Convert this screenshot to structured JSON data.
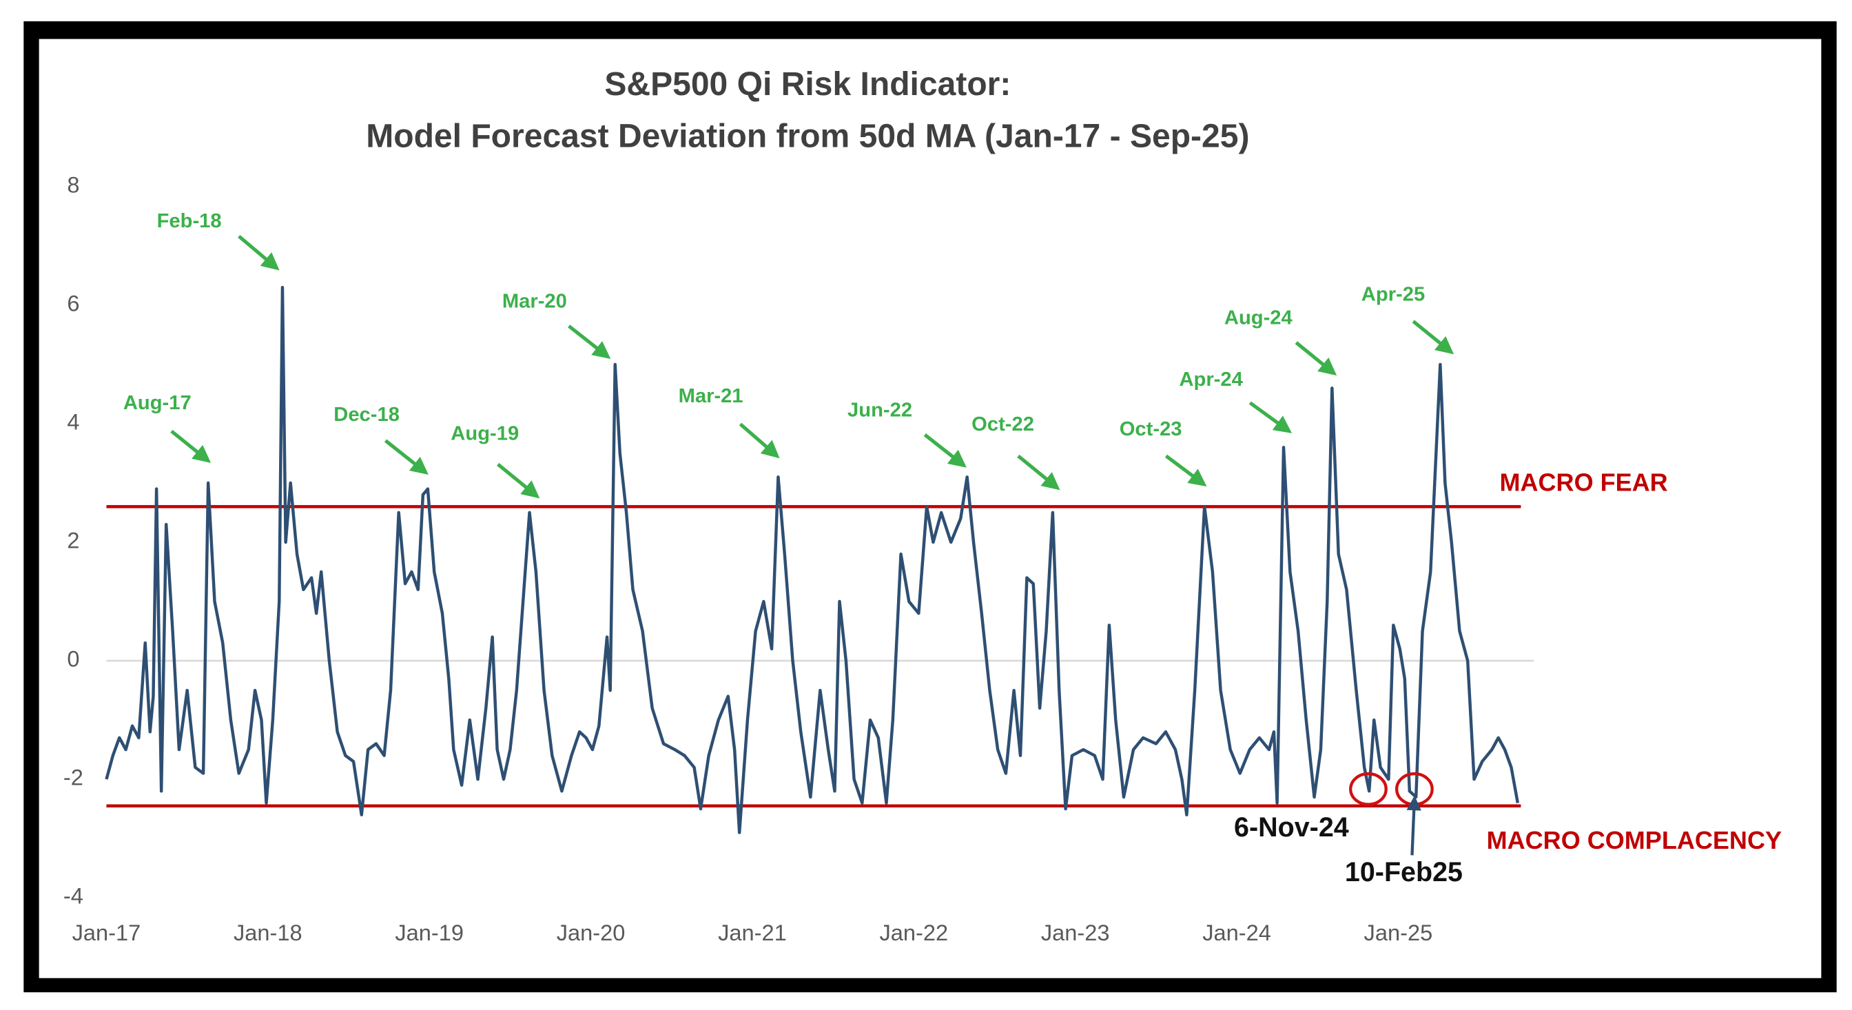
{
  "chart_data": {
    "type": "line",
    "title": "S&P500 Qi Risk Indicator:",
    "subtitle": "Model Forecast Deviation from 50d MA (Jan-17 - Sep-25)",
    "color": "#2e4f73",
    "xlim": [
      2017,
      2025.84
    ],
    "xticks": [
      {
        "value": 2017,
        "label": "Jan-17"
      },
      {
        "value": 2018,
        "label": "Jan-18"
      },
      {
        "value": 2019,
        "label": "Jan-19"
      },
      {
        "value": 2020,
        "label": "Jan-20"
      },
      {
        "value": 2021,
        "label": "Jan-21"
      },
      {
        "value": 2022,
        "label": "Jan-22"
      },
      {
        "value": 2023,
        "label": "Jan-23"
      },
      {
        "value": 2024,
        "label": "Jan-24"
      },
      {
        "value": 2025,
        "label": "Jan-25"
      }
    ],
    "ylim": [
      -4,
      8
    ],
    "yticks": [
      8,
      6,
      4,
      2,
      0,
      -2,
      -4
    ],
    "grid": false,
    "x": [
      2017.0,
      2017.04,
      2017.08,
      2017.12,
      2017.16,
      2017.2,
      2017.24,
      2017.27,
      2017.29,
      2017.31,
      2017.34,
      2017.37,
      2017.41,
      2017.45,
      2017.5,
      2017.55,
      2017.6,
      2017.63,
      2017.67,
      2017.72,
      2017.77,
      2017.82,
      2017.88,
      2017.92,
      2017.96,
      2017.99,
      2018.03,
      2018.07,
      2018.09,
      2018.11,
      2018.14,
      2018.18,
      2018.22,
      2018.27,
      2018.3,
      2018.33,
      2018.38,
      2018.43,
      2018.48,
      2018.53,
      2018.58,
      2018.62,
      2018.67,
      2018.72,
      2018.76,
      2018.81,
      2018.85,
      2018.89,
      2018.93,
      2018.96,
      2018.99,
      2019.03,
      2019.08,
      2019.12,
      2019.15,
      2019.2,
      2019.25,
      2019.3,
      2019.35,
      2019.39,
      2019.42,
      2019.46,
      2019.5,
      2019.54,
      2019.58,
      2019.62,
      2019.66,
      2019.71,
      2019.76,
      2019.82,
      2019.88,
      2019.93,
      2019.97,
      2020.01,
      2020.05,
      2020.1,
      2020.12,
      2020.15,
      2020.18,
      2020.22,
      2020.26,
      2020.32,
      2020.38,
      2020.45,
      2020.52,
      2020.58,
      2020.64,
      2020.68,
      2020.73,
      2020.79,
      2020.85,
      2020.89,
      2020.92,
      2020.97,
      2021.02,
      2021.07,
      2021.12,
      2021.16,
      2021.2,
      2021.25,
      2021.3,
      2021.36,
      2021.42,
      2021.47,
      2021.51,
      2021.54,
      2021.58,
      2021.63,
      2021.68,
      2021.73,
      2021.78,
      2021.83,
      2021.87,
      2021.92,
      2021.97,
      2022.03,
      2022.08,
      2022.12,
      2022.17,
      2022.23,
      2022.29,
      2022.33,
      2022.37,
      2022.42,
      2022.47,
      2022.52,
      2022.57,
      2022.62,
      2022.66,
      2022.7,
      2022.74,
      2022.78,
      2022.82,
      2022.86,
      2022.9,
      2022.94,
      2022.98,
      2023.05,
      2023.12,
      2023.17,
      2023.21,
      2023.25,
      2023.3,
      2023.36,
      2023.42,
      2023.5,
      2023.56,
      2023.62,
      2023.66,
      2023.69,
      2023.74,
      2023.8,
      2023.85,
      2023.9,
      2023.96,
      2024.02,
      2024.08,
      2024.14,
      2024.2,
      2024.23,
      2024.25,
      2024.29,
      2024.33,
      2024.38,
      2024.43,
      2024.48,
      2024.52,
      2024.56,
      2024.59,
      2024.63,
      2024.68,
      2024.74,
      2024.79,
      2024.82,
      2024.85,
      2024.89,
      2024.94,
      2024.97,
      2025.01,
      2025.04,
      2025.07,
      2025.11,
      2025.15,
      2025.2,
      2025.26,
      2025.29,
      2025.33,
      2025.38,
      2025.43,
      2025.47,
      2025.52,
      2025.58,
      2025.62,
      2025.66,
      2025.7,
      2025.74
    ],
    "values": [
      -2.0,
      -1.6,
      -1.3,
      -1.5,
      -1.1,
      -1.3,
      0.3,
      -1.2,
      -0.6,
      2.9,
      -2.2,
      2.3,
      0.5,
      -1.5,
      -0.5,
      -1.8,
      -1.9,
      3.0,
      1.0,
      0.3,
      -1.0,
      -1.9,
      -1.5,
      -0.5,
      -1.0,
      -2.4,
      -1.0,
      1.0,
      6.3,
      2.0,
      3.0,
      1.8,
      1.2,
      1.4,
      0.8,
      1.5,
      0.0,
      -1.2,
      -1.6,
      -1.7,
      -2.6,
      -1.5,
      -1.4,
      -1.6,
      -0.5,
      2.5,
      1.3,
      1.5,
      1.2,
      2.8,
      2.9,
      1.5,
      0.8,
      -0.3,
      -1.5,
      -2.1,
      -1.0,
      -2.0,
      -0.8,
      0.4,
      -1.5,
      -2.0,
      -1.5,
      -0.5,
      1.0,
      2.5,
      1.5,
      -0.5,
      -1.6,
      -2.2,
      -1.6,
      -1.2,
      -1.3,
      -1.5,
      -1.1,
      0.4,
      -0.5,
      5.0,
      3.5,
      2.5,
      1.2,
      0.5,
      -0.8,
      -1.4,
      -1.5,
      -1.6,
      -1.8,
      -2.5,
      -1.6,
      -1.0,
      -0.6,
      -1.5,
      -2.9,
      -1.0,
      0.5,
      1.0,
      0.2,
      3.1,
      1.8,
      0.0,
      -1.2,
      -2.3,
      -0.5,
      -1.5,
      -2.2,
      1.0,
      0.0,
      -2.0,
      -2.4,
      -1.0,
      -1.3,
      -2.4,
      -1.0,
      1.8,
      1.0,
      0.8,
      2.6,
      2.0,
      2.5,
      2.0,
      2.4,
      3.1,
      2.0,
      0.8,
      -0.5,
      -1.5,
      -1.9,
      -0.5,
      -1.6,
      1.4,
      1.3,
      -0.8,
      0.5,
      2.5,
      -0.5,
      -2.5,
      -1.6,
      -1.5,
      -1.6,
      -2.0,
      0.6,
      -1.0,
      -2.3,
      -1.5,
      -1.3,
      -1.4,
      -1.2,
      -1.5,
      -2.0,
      -2.6,
      -0.5,
      2.6,
      1.5,
      -0.5,
      -1.5,
      -1.9,
      -1.5,
      -1.3,
      -1.5,
      -1.2,
      -2.4,
      3.6,
      1.5,
      0.5,
      -1.0,
      -2.3,
      -1.5,
      1.0,
      4.6,
      1.8,
      1.2,
      -0.5,
      -1.8,
      -2.2,
      -1.0,
      -1.8,
      -2.0,
      0.6,
      0.2,
      -0.3,
      -2.2,
      -2.3,
      0.5,
      1.5,
      5.0,
      3.0,
      2.0,
      0.5,
      0.0,
      -2.0,
      -1.7,
      -1.5,
      -1.3,
      -1.5,
      -1.8,
      -2.4
    ],
    "reference_lines": [
      {
        "value": 2.6,
        "label": "MACRO FEAR",
        "color": "#c00000"
      },
      {
        "value": -2.45,
        "label": "MACRO COMPLACENCY",
        "color": "#c00000"
      }
    ],
    "annotation_color": "#3cb04b",
    "annotations": [
      "Aug-17",
      "Feb-18",
      "Dec-18",
      "Aug-19",
      "Mar-20",
      "Mar-21",
      "Jun-22",
      "Oct-22",
      "Oct-23",
      "Apr-24",
      "Aug-24",
      "Apr-25"
    ],
    "callouts": [
      "6-Nov-24",
      "10-Feb25"
    ]
  }
}
